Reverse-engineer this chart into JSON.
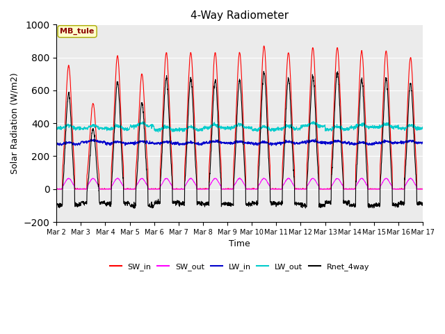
{
  "title": "4-Way Radiometer",
  "xlabel": "Time",
  "ylabel": "Solar Radiation (W/m2)",
  "ylim": [
    -200,
    1000
  ],
  "annotation": "MB_tule",
  "legend_entries": [
    "SW_in",
    "SW_out",
    "LW_in",
    "LW_out",
    "Rnet_4way"
  ],
  "colors": {
    "SW_in": "#ff0000",
    "SW_out": "#ff00ff",
    "LW_in": "#0000cc",
    "LW_out": "#00cccc",
    "Rnet_4way": "#000000"
  },
  "xtick_labels": [
    "Mar 2",
    "Mar 3",
    "Mar 4",
    "Mar 5",
    "Mar 6",
    "Mar 7",
    "Mar 8",
    "Mar 9",
    "Mar 10",
    "Mar 11",
    "Mar 12",
    "Mar 13",
    "Mar 14",
    "Mar 15",
    "Mar 16",
    "Mar 17"
  ],
  "num_days": 15,
  "ax_background": "#ebebeb",
  "peak_heights": [
    750,
    520,
    810,
    700,
    830,
    830,
    830,
    830,
    870,
    830,
    860,
    860,
    840,
    840,
    800
  ],
  "LW_out_base": 370,
  "LW_in_base": 280,
  "night_rnet": -100
}
